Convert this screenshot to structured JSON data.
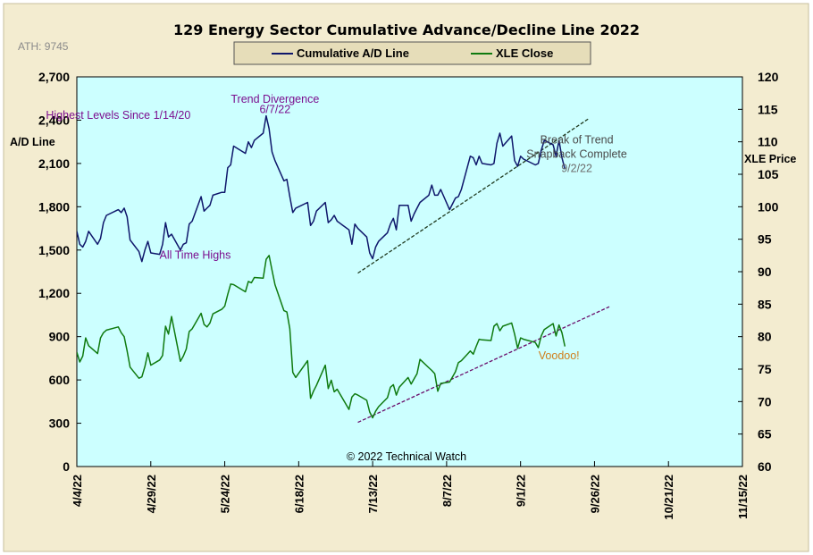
{
  "chart_data": {
    "type": "line",
    "title": "129 Energy Sector Cumulative Advance/Decline Line 2022",
    "ath_label": "ATH: 9745",
    "copyright": "© 2022 Technical Watch",
    "left_axis": {
      "label": "A/D Line",
      "ylim": [
        0,
        2700
      ],
      "ticks": [
        0,
        300,
        600,
        900,
        1200,
        1500,
        1800,
        2100,
        2400,
        2700
      ],
      "tick_labels": [
        "0",
        "300",
        "600",
        "900",
        "1,200",
        "1,500",
        "1,800",
        "2,100",
        "2,400",
        "2,700"
      ]
    },
    "right_axis": {
      "label": "XLE Price",
      "ylim": [
        60,
        120
      ],
      "ticks": [
        60,
        65,
        70,
        75,
        80,
        85,
        90,
        95,
        100,
        105,
        110,
        115,
        120
      ],
      "tick_labels": [
        "60",
        "65",
        "70",
        "75",
        "80",
        "85",
        "90",
        "95",
        "100",
        "105",
        "110",
        "115",
        "120"
      ]
    },
    "x_axis": {
      "tick_dates": [
        "2022-04-04",
        "2022-04-29",
        "2022-05-24",
        "2022-06-18",
        "2022-07-13",
        "2022-08-07",
        "2022-09-01",
        "2022-09-26",
        "2022-10-21",
        "2022-11-15"
      ],
      "tick_labels": [
        "4/4/22",
        "4/29/22",
        "5/24/22",
        "6/18/22",
        "7/13/22",
        "8/7/22",
        "9/1/22",
        "9/26/22",
        "10/21/22",
        "11/15/22"
      ],
      "range": [
        "2022-04-04",
        "2022-11-15"
      ]
    },
    "grid": false,
    "legend": {
      "placement": "top-center",
      "entries": [
        {
          "label": "Cumulative A/D Line",
          "color": "#0f176b"
        },
        {
          "label": "XLE Close",
          "color": "#0f7a0f"
        }
      ]
    },
    "colors": {
      "plot_background": "#ccffff",
      "frame_background": "#f3ecd0",
      "ad_line": "#0f176b",
      "xle_line": "#0f7a0f",
      "trend_ad": "#1f3a1f",
      "trend_xle": "#6a0c6a"
    },
    "series": [
      {
        "name": "Cumulative A/D Line",
        "axis": "left",
        "points": [
          [
            "2022-04-04",
            1630
          ],
          [
            "2022-04-05",
            1540
          ],
          [
            "2022-04-06",
            1520
          ],
          [
            "2022-04-07",
            1560
          ],
          [
            "2022-04-08",
            1630
          ],
          [
            "2022-04-11",
            1540
          ],
          [
            "2022-04-12",
            1580
          ],
          [
            "2022-04-13",
            1690
          ],
          [
            "2022-04-14",
            1740
          ],
          [
            "2022-04-18",
            1780
          ],
          [
            "2022-04-19",
            1760
          ],
          [
            "2022-04-20",
            1790
          ],
          [
            "2022-04-21",
            1730
          ],
          [
            "2022-04-22",
            1570
          ],
          [
            "2022-04-25",
            1490
          ],
          [
            "2022-04-26",
            1420
          ],
          [
            "2022-04-27",
            1500
          ],
          [
            "2022-04-28",
            1560
          ],
          [
            "2022-04-29",
            1480
          ],
          [
            "2022-05-02",
            1470
          ],
          [
            "2022-05-03",
            1540
          ],
          [
            "2022-05-04",
            1690
          ],
          [
            "2022-05-05",
            1590
          ],
          [
            "2022-05-06",
            1610
          ],
          [
            "2022-05-09",
            1500
          ],
          [
            "2022-05-10",
            1540
          ],
          [
            "2022-05-11",
            1550
          ],
          [
            "2022-05-12",
            1680
          ],
          [
            "2022-05-13",
            1700
          ],
          [
            "2022-05-16",
            1870
          ],
          [
            "2022-05-17",
            1770
          ],
          [
            "2022-05-18",
            1790
          ],
          [
            "2022-05-19",
            1810
          ],
          [
            "2022-05-20",
            1880
          ],
          [
            "2022-05-23",
            1900
          ],
          [
            "2022-05-24",
            1900
          ],
          [
            "2022-05-25",
            2070
          ],
          [
            "2022-05-26",
            2090
          ],
          [
            "2022-05-27",
            2220
          ],
          [
            "2022-05-31",
            2170
          ],
          [
            "2022-06-01",
            2250
          ],
          [
            "2022-06-02",
            2210
          ],
          [
            "2022-06-03",
            2260
          ],
          [
            "2022-06-06",
            2310
          ],
          [
            "2022-06-07",
            2430
          ],
          [
            "2022-06-08",
            2340
          ],
          [
            "2022-06-09",
            2180
          ],
          [
            "2022-06-10",
            2120
          ],
          [
            "2022-06-13",
            1980
          ],
          [
            "2022-06-14",
            1990
          ],
          [
            "2022-06-15",
            1870
          ],
          [
            "2022-06-16",
            1760
          ],
          [
            "2022-06-17",
            1790
          ],
          [
            "2022-06-21",
            1830
          ],
          [
            "2022-06-22",
            1670
          ],
          [
            "2022-06-23",
            1700
          ],
          [
            "2022-06-24",
            1770
          ],
          [
            "2022-06-27",
            1830
          ],
          [
            "2022-06-28",
            1690
          ],
          [
            "2022-06-29",
            1710
          ],
          [
            "2022-06-30",
            1740
          ],
          [
            "2022-07-01",
            1700
          ],
          [
            "2022-07-05",
            1640
          ],
          [
            "2022-07-06",
            1540
          ],
          [
            "2022-07-07",
            1680
          ],
          [
            "2022-07-08",
            1650
          ],
          [
            "2022-07-11",
            1590
          ],
          [
            "2022-07-12",
            1480
          ],
          [
            "2022-07-13",
            1440
          ],
          [
            "2022-07-14",
            1520
          ],
          [
            "2022-07-15",
            1560
          ],
          [
            "2022-07-18",
            1620
          ],
          [
            "2022-07-19",
            1680
          ],
          [
            "2022-07-20",
            1720
          ],
          [
            "2022-07-21",
            1640
          ],
          [
            "2022-07-22",
            1810
          ],
          [
            "2022-07-25",
            1810
          ],
          [
            "2022-07-26",
            1700
          ],
          [
            "2022-07-27",
            1750
          ],
          [
            "2022-07-28",
            1790
          ],
          [
            "2022-07-29",
            1830
          ],
          [
            "2022-08-01",
            1880
          ],
          [
            "2022-08-02",
            1950
          ],
          [
            "2022-08-03",
            1880
          ],
          [
            "2022-08-04",
            1880
          ],
          [
            "2022-08-05",
            1920
          ],
          [
            "2022-08-08",
            1780
          ],
          [
            "2022-08-09",
            1820
          ],
          [
            "2022-08-10",
            1860
          ],
          [
            "2022-08-11",
            1870
          ],
          [
            "2022-08-12",
            1920
          ],
          [
            "2022-08-15",
            2150
          ],
          [
            "2022-08-16",
            2140
          ],
          [
            "2022-08-17",
            2090
          ],
          [
            "2022-08-18",
            2150
          ],
          [
            "2022-08-19",
            2100
          ],
          [
            "2022-08-22",
            2090
          ],
          [
            "2022-08-23",
            2100
          ],
          [
            "2022-08-24",
            2240
          ],
          [
            "2022-08-25",
            2310
          ],
          [
            "2022-08-26",
            2220
          ],
          [
            "2022-08-29",
            2290
          ],
          [
            "2022-08-30",
            2120
          ],
          [
            "2022-08-31",
            2080
          ],
          [
            "2022-09-01",
            2150
          ],
          [
            "2022-09-02",
            2130
          ],
          [
            "2022-09-06",
            2090
          ],
          [
            "2022-09-07",
            2100
          ],
          [
            "2022-09-08",
            2190
          ],
          [
            "2022-09-09",
            2260
          ],
          [
            "2022-09-12",
            2230
          ],
          [
            "2022-09-13",
            2150
          ],
          [
            "2022-09-14",
            2260
          ],
          [
            "2022-09-15",
            2140
          ],
          [
            "2022-09-16",
            2060
          ]
        ]
      },
      {
        "name": "XLE Close",
        "axis": "right",
        "points": [
          [
            "2022-04-04",
            77.6
          ],
          [
            "2022-04-05",
            76.1
          ],
          [
            "2022-04-06",
            77.0
          ],
          [
            "2022-04-07",
            79.8
          ],
          [
            "2022-04-08",
            78.6
          ],
          [
            "2022-04-11",
            77.4
          ],
          [
            "2022-04-12",
            79.8
          ],
          [
            "2022-04-13",
            80.6
          ],
          [
            "2022-04-14",
            81.0
          ],
          [
            "2022-04-18",
            81.5
          ],
          [
            "2022-04-19",
            80.6
          ],
          [
            "2022-04-20",
            80.0
          ],
          [
            "2022-04-21",
            77.8
          ],
          [
            "2022-04-22",
            75.3
          ],
          [
            "2022-04-25",
            73.6
          ],
          [
            "2022-04-26",
            73.8
          ],
          [
            "2022-04-27",
            75.4
          ],
          [
            "2022-04-28",
            77.5
          ],
          [
            "2022-04-29",
            75.6
          ],
          [
            "2022-05-02",
            76.4
          ],
          [
            "2022-05-03",
            77.1
          ],
          [
            "2022-05-04",
            81.6
          ],
          [
            "2022-05-05",
            80.4
          ],
          [
            "2022-05-06",
            83.1
          ],
          [
            "2022-05-09",
            76.2
          ],
          [
            "2022-05-10",
            77.0
          ],
          [
            "2022-05-11",
            78.1
          ],
          [
            "2022-05-12",
            80.8
          ],
          [
            "2022-05-13",
            81.2
          ],
          [
            "2022-05-16",
            83.6
          ],
          [
            "2022-05-17",
            81.9
          ],
          [
            "2022-05-18",
            81.5
          ],
          [
            "2022-05-19",
            82.1
          ],
          [
            "2022-05-20",
            83.5
          ],
          [
            "2022-05-23",
            84.2
          ],
          [
            "2022-05-24",
            84.7
          ],
          [
            "2022-05-25",
            86.5
          ],
          [
            "2022-05-26",
            88.1
          ],
          [
            "2022-05-27",
            88.0
          ],
          [
            "2022-05-31",
            86.9
          ],
          [
            "2022-06-01",
            88.5
          ],
          [
            "2022-06-02",
            88.3
          ],
          [
            "2022-06-03",
            89.1
          ],
          [
            "2022-06-06",
            89.0
          ],
          [
            "2022-06-07",
            91.9
          ],
          [
            "2022-06-08",
            92.5
          ],
          [
            "2022-06-09",
            90.2
          ],
          [
            "2022-06-10",
            88.0
          ],
          [
            "2022-06-13",
            84.0
          ],
          [
            "2022-06-14",
            83.8
          ],
          [
            "2022-06-15",
            81.2
          ],
          [
            "2022-06-16",
            74.5
          ],
          [
            "2022-06-17",
            73.7
          ],
          [
            "2022-06-21",
            76.3
          ],
          [
            "2022-06-22",
            70.5
          ],
          [
            "2022-06-23",
            71.6
          ],
          [
            "2022-06-24",
            72.5
          ],
          [
            "2022-06-27",
            75.6
          ],
          [
            "2022-06-28",
            72.0
          ],
          [
            "2022-06-29",
            73.3
          ],
          [
            "2022-06-30",
            71.5
          ],
          [
            "2022-07-01",
            71.9
          ],
          [
            "2022-07-05",
            68.8
          ],
          [
            "2022-07-06",
            70.7
          ],
          [
            "2022-07-07",
            71.2
          ],
          [
            "2022-07-08",
            71.0
          ],
          [
            "2022-07-11",
            70.2
          ],
          [
            "2022-07-12",
            68.4
          ],
          [
            "2022-07-13",
            67.5
          ],
          [
            "2022-07-14",
            68.5
          ],
          [
            "2022-07-15",
            69.2
          ],
          [
            "2022-07-18",
            70.6
          ],
          [
            "2022-07-19",
            72.2
          ],
          [
            "2022-07-20",
            72.6
          ],
          [
            "2022-07-21",
            71.0
          ],
          [
            "2022-07-22",
            72.2
          ],
          [
            "2022-07-25",
            73.7
          ],
          [
            "2022-07-26",
            72.7
          ],
          [
            "2022-07-27",
            73.5
          ],
          [
            "2022-07-28",
            74.3
          ],
          [
            "2022-07-29",
            76.5
          ],
          [
            "2022-08-01",
            75.2
          ],
          [
            "2022-08-02",
            74.8
          ],
          [
            "2022-08-03",
            74.3
          ],
          [
            "2022-08-04",
            71.6
          ],
          [
            "2022-08-05",
            72.8
          ],
          [
            "2022-08-08",
            73.0
          ],
          [
            "2022-08-09",
            73.8
          ],
          [
            "2022-08-10",
            74.6
          ],
          [
            "2022-08-11",
            76.0
          ],
          [
            "2022-08-12",
            76.3
          ],
          [
            "2022-08-15",
            77.8
          ],
          [
            "2022-08-16",
            77.3
          ],
          [
            "2022-08-17",
            78.5
          ],
          [
            "2022-08-18",
            79.6
          ],
          [
            "2022-08-19",
            79.5
          ],
          [
            "2022-08-22",
            79.4
          ],
          [
            "2022-08-23",
            81.6
          ],
          [
            "2022-08-24",
            82.0
          ],
          [
            "2022-08-25",
            80.9
          ],
          [
            "2022-08-26",
            81.6
          ],
          [
            "2022-08-29",
            82.1
          ],
          [
            "2022-08-30",
            80.4
          ],
          [
            "2022-08-31",
            78.2
          ],
          [
            "2022-09-01",
            79.8
          ],
          [
            "2022-09-02",
            79.6
          ],
          [
            "2022-09-06",
            79.1
          ],
          [
            "2022-09-07",
            78.3
          ],
          [
            "2022-09-08",
            80.1
          ],
          [
            "2022-09-09",
            81.1
          ],
          [
            "2022-09-12",
            82.0
          ],
          [
            "2022-09-13",
            80.1
          ],
          [
            "2022-09-14",
            81.8
          ],
          [
            "2022-09-15",
            80.6
          ],
          [
            "2022-09-16",
            78.5
          ]
        ]
      }
    ],
    "trendlines": [
      {
        "axis": "left",
        "from": [
          "2022-07-08",
          1340
        ],
        "to": [
          "2022-09-24",
          2410
        ],
        "color": "#1f3a1f",
        "style": "dashed"
      },
      {
        "axis": "right",
        "from": [
          "2022-07-08",
          66.8
        ],
        "to": [
          "2022-10-01",
          84.6
        ],
        "color": "#6a0c6a",
        "style": "dashed"
      }
    ],
    "annotations": [
      {
        "text": "Highest Levels  Since 1/14/20",
        "style": "purple",
        "at": [
          "2022-04-18",
          2410
        ],
        "axis": "left"
      },
      {
        "text": "Trend  Divergence",
        "style": "purple",
        "at": [
          "2022-06-10",
          2520
        ],
        "axis": "left"
      },
      {
        "text": "6/7/22",
        "style": "purple",
        "at": [
          "2022-06-10",
          2450
        ],
        "axis": "left"
      },
      {
        "text": "All Time Highs",
        "style": "purple",
        "at": [
          "2022-05-14",
          1440
        ],
        "axis": "left"
      },
      {
        "text": "Break of Trend",
        "style": "gray",
        "at": [
          "2022-09-20",
          2240
        ],
        "axis": "left"
      },
      {
        "text": "Snapback Complete",
        "style": "gray",
        "at": [
          "2022-09-20",
          2140
        ],
        "axis": "left"
      },
      {
        "text": "9/2/22",
        "style": "gray2",
        "at": [
          "2022-09-20",
          2040
        ],
        "axis": "left"
      },
      {
        "text": "Voodoo!",
        "style": "orange",
        "at": [
          "2022-09-14",
          76.5
        ],
        "axis": "right"
      }
    ]
  }
}
